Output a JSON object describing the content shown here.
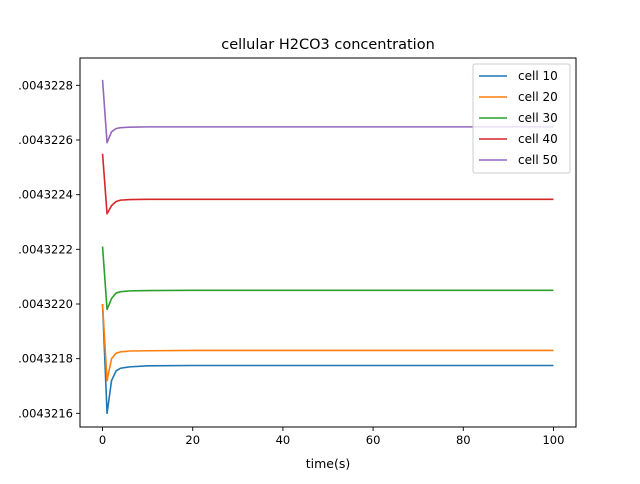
{
  "chart_data": {
    "type": "line",
    "title": "cellular H2CO3 concentration",
    "xlabel": "time(s)",
    "ylabel": "",
    "xlim": [
      -5,
      105
    ],
    "ylim": [
      0.00432155,
      0.0043229
    ],
    "x_ticks": [
      0,
      20,
      40,
      60,
      80,
      100
    ],
    "x_tick_labels": [
      "0",
      "20",
      "40",
      "60",
      "80",
      "100"
    ],
    "y_ticks": [
      0.0043216,
      0.0043218,
      0.004322,
      0.0043222,
      0.0043224,
      0.0043226,
      0.0043228
    ],
    "y_tick_labels": [
      ".0043216",
      ".0043218",
      ".0043220",
      ".0043222",
      ".0043224",
      ".0043226",
      ".0043228"
    ],
    "grid": false,
    "legend_position": "upper right",
    "series": [
      {
        "name": "cell 10",
        "color": "#1f77b4",
        "x": [
          0,
          1,
          2,
          3,
          4,
          6,
          10,
          20,
          100
        ],
        "y": [
          0.004322,
          0.0043216,
          0.00432172,
          0.004321755,
          0.004321765,
          0.00432177,
          0.004321774,
          0.004321775,
          0.004321775
        ]
      },
      {
        "name": "cell 20",
        "color": "#ff7f0e",
        "x": [
          0,
          1,
          2,
          3,
          4,
          6,
          10,
          20,
          100
        ],
        "y": [
          0.004322,
          0.00432172,
          0.0043218,
          0.00432182,
          0.004321825,
          0.004321828,
          0.004321829,
          0.00432183,
          0.00432183
        ]
      },
      {
        "name": "cell 30",
        "color": "#2ca02c",
        "x": [
          0,
          1,
          2,
          3,
          4,
          6,
          10,
          20,
          100
        ],
        "y": [
          0.00432221,
          0.00432198,
          0.00432202,
          0.00432204,
          0.004322045,
          0.004322048,
          0.004322049,
          0.00432205,
          0.00432205
        ]
      },
      {
        "name": "cell 40",
        "color": "#d62728",
        "x": [
          0,
          1,
          2,
          3,
          4,
          6,
          10,
          20,
          100
        ],
        "y": [
          0.00432255,
          0.00432233,
          0.00432236,
          0.004322375,
          0.00432238,
          0.004322382,
          0.004322383,
          0.004322383,
          0.004322383
        ]
      },
      {
        "name": "cell 50",
        "color": "#9467bd",
        "x": [
          0,
          1,
          2,
          3,
          4,
          6,
          10,
          20,
          100
        ],
        "y": [
          0.00432282,
          0.00432259,
          0.00432263,
          0.004322642,
          0.004322645,
          0.004322647,
          0.004322648,
          0.004322648,
          0.004322648
        ]
      }
    ]
  }
}
